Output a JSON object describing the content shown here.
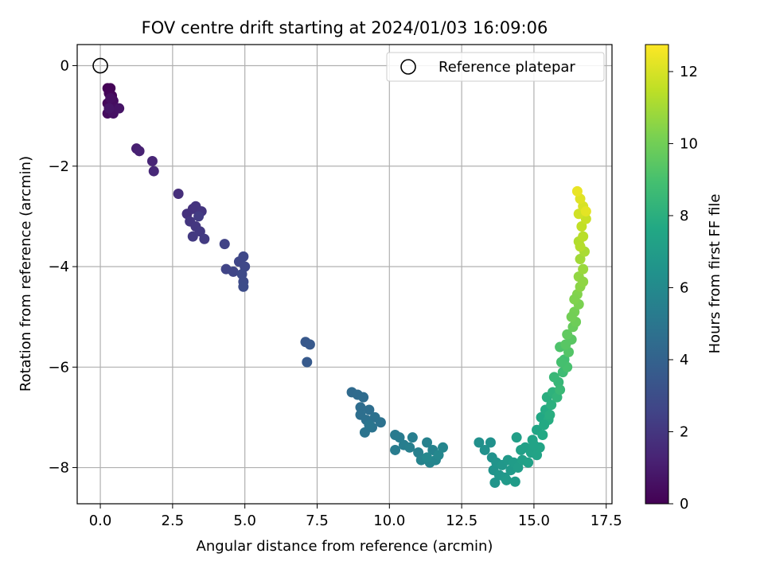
{
  "chart_data": {
    "type": "scatter",
    "title": "FOV centre drift starting at 2024/01/03 16:09:06",
    "xlabel": "Angular distance from reference (arcmin)",
    "ylabel": "Rotation from reference (arcmin)",
    "colorbar_label": "Hours from first FF file",
    "colormap": "viridis",
    "xlim": [
      -0.8,
      17.7
    ],
    "ylim": [
      -8.72,
      0.42
    ],
    "clim": [
      0,
      12.75
    ],
    "x_ticks": [
      "0.0",
      "2.5",
      "5.0",
      "7.5",
      "10.0",
      "12.5",
      "15.0",
      "17.5"
    ],
    "x_tick_values": [
      0,
      2.5,
      5,
      7.5,
      10,
      12.5,
      15,
      17.5
    ],
    "y_ticks": [
      "0",
      "−2",
      "−4",
      "−6",
      "−8"
    ],
    "y_tick_values": [
      0,
      -2,
      -4,
      -6,
      -8
    ],
    "colorbar_ticks": [
      "0",
      "2",
      "4",
      "6",
      "8",
      "10",
      "12"
    ],
    "colorbar_tick_values": [
      0,
      2,
      4,
      6,
      8,
      10,
      12
    ],
    "grid": true,
    "legend": {
      "position": "upper-right",
      "entries": [
        {
          "label": "Reference platepar",
          "marker": "open-circle",
          "x": 0,
          "y": 0
        }
      ]
    },
    "series": [
      {
        "points": [
          [
            0.25,
            -0.45,
            0.05
          ],
          [
            0.35,
            -0.45,
            0.1
          ],
          [
            0.3,
            -0.55,
            0.15
          ],
          [
            0.4,
            -0.6,
            0.2
          ],
          [
            0.25,
            -0.75,
            0.25
          ],
          [
            0.4,
            -0.8,
            0.3
          ],
          [
            0.35,
            -0.9,
            0.35
          ],
          [
            0.25,
            -0.95,
            0.4
          ],
          [
            0.45,
            -0.7,
            0.45
          ],
          [
            0.5,
            -0.85,
            0.5
          ],
          [
            0.35,
            -0.65,
            0.55
          ],
          [
            0.45,
            -0.95,
            0.6
          ],
          [
            0.65,
            -0.85,
            0.7
          ],
          [
            0.3,
            -0.85,
            0.75
          ],
          [
            1.25,
            -1.65,
            1.1
          ],
          [
            1.35,
            -1.7,
            1.2
          ],
          [
            1.8,
            -1.9,
            1.35
          ],
          [
            1.85,
            -2.1,
            1.45
          ],
          [
            2.7,
            -2.55,
            1.7
          ],
          [
            3.0,
            -2.95,
            1.8
          ],
          [
            3.2,
            -2.85,
            1.85
          ],
          [
            3.3,
            -2.8,
            1.9
          ],
          [
            3.5,
            -2.9,
            1.95
          ],
          [
            3.1,
            -3.1,
            2.0
          ],
          [
            3.3,
            -3.2,
            2.05
          ],
          [
            3.45,
            -3.3,
            2.1
          ],
          [
            3.2,
            -3.4,
            2.15
          ],
          [
            3.6,
            -3.45,
            2.2
          ],
          [
            3.4,
            -3.0,
            2.25
          ],
          [
            4.3,
            -3.55,
            2.5
          ],
          [
            4.35,
            -4.05,
            2.6
          ],
          [
            4.6,
            -4.1,
            2.65
          ],
          [
            4.8,
            -3.9,
            2.7
          ],
          [
            4.95,
            -3.8,
            2.75
          ],
          [
            5.0,
            -4.0,
            2.8
          ],
          [
            4.9,
            -4.15,
            2.85
          ],
          [
            4.95,
            -4.3,
            2.9
          ],
          [
            4.95,
            -4.4,
            2.95
          ],
          [
            7.1,
            -5.5,
            3.5
          ],
          [
            7.25,
            -5.55,
            3.55
          ],
          [
            7.15,
            -5.9,
            3.6
          ],
          [
            8.7,
            -6.5,
            4.4
          ],
          [
            8.9,
            -6.55,
            4.45
          ],
          [
            9.1,
            -6.6,
            4.5
          ],
          [
            9.0,
            -6.8,
            4.55
          ],
          [
            9.3,
            -6.85,
            4.6
          ],
          [
            9.0,
            -6.95,
            4.65
          ],
          [
            9.2,
            -7.05,
            4.7
          ],
          [
            9.5,
            -7.0,
            4.75
          ],
          [
            9.7,
            -7.1,
            4.8
          ],
          [
            9.4,
            -7.2,
            4.85
          ],
          [
            9.15,
            -7.3,
            4.9
          ],
          [
            9.3,
            -7.15,
            4.95
          ],
          [
            10.2,
            -7.35,
            5.2
          ],
          [
            10.35,
            -7.4,
            5.25
          ],
          [
            10.2,
            -7.65,
            5.3
          ],
          [
            10.5,
            -7.55,
            5.35
          ],
          [
            10.8,
            -7.4,
            5.4
          ],
          [
            10.7,
            -7.6,
            5.45
          ],
          [
            11.0,
            -7.7,
            5.5
          ],
          [
            11.3,
            -7.5,
            5.55
          ],
          [
            11.5,
            -7.65,
            5.6
          ],
          [
            11.1,
            -7.85,
            5.65
          ],
          [
            11.4,
            -7.9,
            5.7
          ],
          [
            11.6,
            -7.85,
            5.75
          ],
          [
            11.85,
            -7.6,
            5.8
          ],
          [
            11.7,
            -7.75,
            5.85
          ],
          [
            11.3,
            -7.8,
            5.9
          ],
          [
            13.1,
            -7.5,
            6.3
          ],
          [
            13.3,
            -7.65,
            6.35
          ],
          [
            13.5,
            -7.5,
            6.4
          ],
          [
            13.55,
            -7.8,
            6.45
          ],
          [
            13.6,
            -8.05,
            6.5
          ],
          [
            13.7,
            -7.9,
            6.55
          ],
          [
            13.65,
            -8.3,
            6.6
          ],
          [
            13.8,
            -8.15,
            6.65
          ],
          [
            13.9,
            -7.95,
            6.7
          ],
          [
            14.0,
            -8.2,
            6.75
          ],
          [
            14.1,
            -7.85,
            6.8
          ],
          [
            14.05,
            -8.25,
            6.85
          ],
          [
            14.2,
            -8.05,
            6.9
          ],
          [
            14.35,
            -8.28,
            6.95
          ],
          [
            14.3,
            -7.9,
            7.0
          ],
          [
            14.45,
            -8.0,
            7.05
          ],
          [
            14.4,
            -7.4,
            7.1
          ],
          [
            14.6,
            -7.85,
            7.15
          ],
          [
            14.7,
            -7.6,
            7.2
          ],
          [
            14.8,
            -7.9,
            7.25
          ],
          [
            14.9,
            -7.7,
            7.3
          ],
          [
            14.95,
            -7.45,
            7.35
          ],
          [
            15.1,
            -7.75,
            7.4
          ],
          [
            15.2,
            -7.6,
            7.45
          ],
          [
            15.1,
            -7.25,
            7.5
          ],
          [
            15.25,
            -7.0,
            7.6
          ],
          [
            15.3,
            -7.35,
            7.65
          ],
          [
            15.4,
            -6.85,
            7.75
          ],
          [
            15.5,
            -7.05,
            7.85
          ],
          [
            15.45,
            -6.6,
            7.95
          ],
          [
            15.6,
            -6.75,
            8.05
          ],
          [
            15.65,
            -6.5,
            8.15
          ],
          [
            15.8,
            -6.6,
            8.3
          ],
          [
            15.85,
            -6.3,
            8.45
          ],
          [
            15.9,
            -6.45,
            8.55
          ],
          [
            16.0,
            -6.1,
            8.7
          ],
          [
            16.05,
            -5.85,
            8.85
          ],
          [
            16.15,
            -6.0,
            9.0
          ],
          [
            15.9,
            -5.6,
            9.15
          ],
          [
            16.2,
            -5.7,
            9.3
          ],
          [
            16.3,
            -5.45,
            9.45
          ],
          [
            16.15,
            -5.35,
            9.6
          ],
          [
            16.35,
            -5.2,
            9.75
          ],
          [
            16.45,
            -5.1,
            9.9
          ],
          [
            16.4,
            -4.9,
            10.05
          ],
          [
            16.55,
            -4.75,
            10.2
          ],
          [
            16.5,
            -4.55,
            10.35
          ],
          [
            16.6,
            -4.4,
            10.5
          ],
          [
            16.55,
            -4.2,
            10.65
          ],
          [
            16.7,
            -4.05,
            10.8
          ],
          [
            16.6,
            -3.85,
            10.95
          ],
          [
            16.75,
            -3.7,
            11.1
          ],
          [
            16.55,
            -3.5,
            11.25
          ],
          [
            16.7,
            -3.4,
            11.4
          ],
          [
            16.65,
            -3.2,
            11.55
          ],
          [
            16.8,
            -3.05,
            11.7
          ],
          [
            16.55,
            -2.95,
            11.85
          ],
          [
            16.7,
            -2.8,
            12.0
          ],
          [
            16.6,
            -2.65,
            12.15
          ],
          [
            16.8,
            -2.9,
            12.25
          ],
          [
            16.5,
            -2.5,
            12.35
          ],
          [
            16.6,
            -3.6,
            11.3
          ],
          [
            16.7,
            -4.3,
            10.6
          ],
          [
            16.4,
            -4.65,
            10.3
          ],
          [
            16.3,
            -5.0,
            10.0
          ],
          [
            16.1,
            -5.55,
            9.4
          ],
          [
            15.95,
            -5.9,
            8.95
          ],
          [
            15.7,
            -6.2,
            8.5
          ],
          [
            15.55,
            -6.95,
            7.9
          ],
          [
            15.35,
            -7.15,
            7.7
          ],
          [
            15.0,
            -7.55,
            7.4
          ],
          [
            14.55,
            -7.65,
            7.2
          ]
        ]
      }
    ]
  }
}
